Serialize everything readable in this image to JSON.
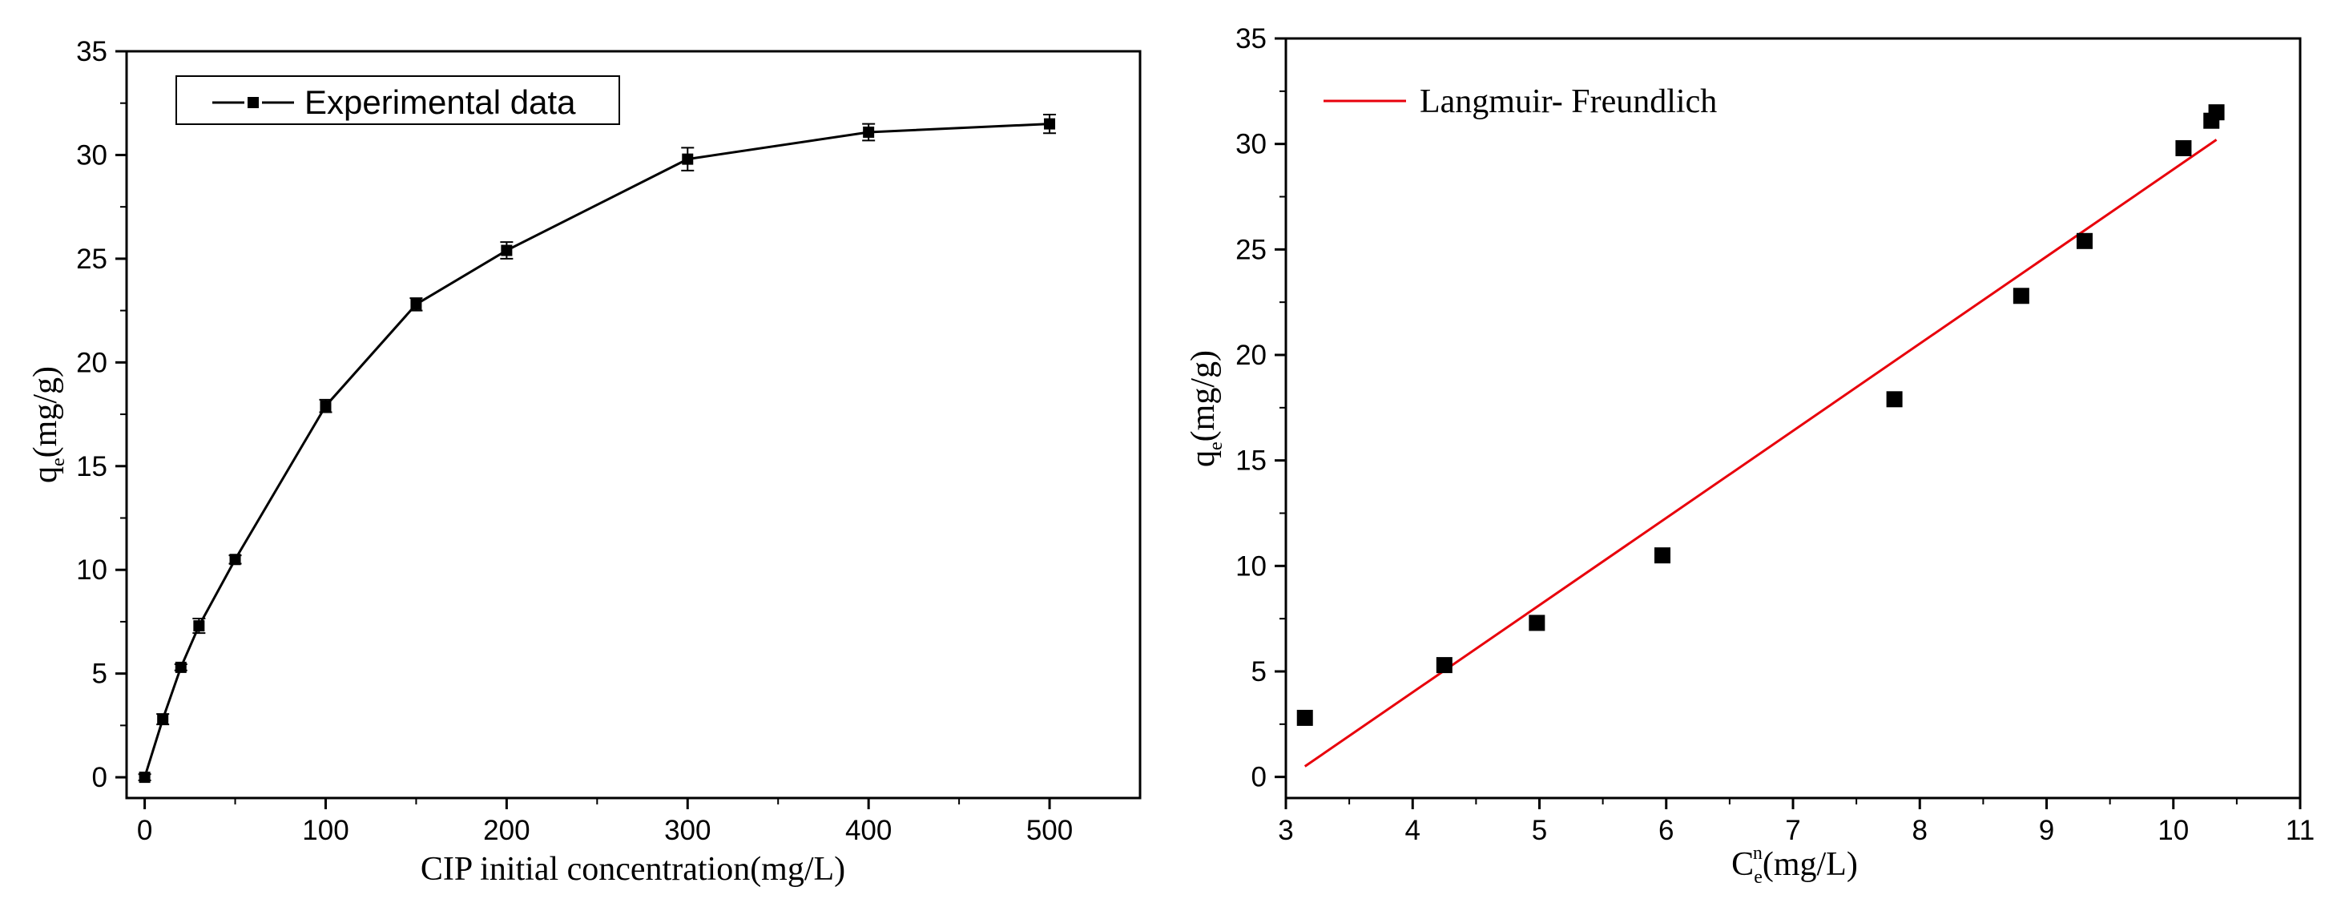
{
  "chart_data": [
    {
      "type": "line",
      "title": "",
      "xlabel": "CIP initial  concentration(mg/L)",
      "ylabel": {
        "base": "q",
        "sub": "e",
        "rest": "(mg/g)"
      },
      "xlim": [
        -10,
        550
      ],
      "ylim": [
        -1,
        35
      ],
      "xticks": [
        0,
        100,
        200,
        300,
        400,
        500
      ],
      "yticks": [
        0,
        5,
        10,
        15,
        20,
        25,
        30,
        35
      ],
      "legend": {
        "label": "Experimental data",
        "position": "top-left"
      },
      "series": [
        {
          "name": "Experimental data",
          "x": [
            0,
            10,
            20,
            30,
            50,
            100,
            150,
            200,
            300,
            400,
            500
          ],
          "y": [
            0,
            2.8,
            5.3,
            7.3,
            10.5,
            17.9,
            22.8,
            25.4,
            29.8,
            31.1,
            31.5
          ],
          "error": [
            0.15,
            0.25,
            0.15,
            0.35,
            0.2,
            0.3,
            0.3,
            0.4,
            0.55,
            0.4,
            0.45
          ]
        }
      ],
      "grid": false
    },
    {
      "type": "scatter",
      "title": "",
      "xlabel": {
        "base": "C",
        "sub": "e",
        "sup": "n",
        "rest": "(mg/L)"
      },
      "ylabel": {
        "base": "q",
        "sub": "e",
        "rest": "(mg/g)"
      },
      "xlim": [
        3,
        11
      ],
      "ylim": [
        -1,
        35
      ],
      "xticks": [
        3,
        4,
        5,
        6,
        7,
        8,
        9,
        10,
        11
      ],
      "yticks": [
        0,
        5,
        10,
        15,
        20,
        25,
        30,
        35
      ],
      "legend": {
        "label": "Langmuir- Freundlich",
        "position": "top-left"
      },
      "points": {
        "x": [
          3.15,
          4.25,
          4.98,
          5.97,
          7.8,
          8.8,
          9.3,
          10.08,
          10.3,
          10.34
        ],
        "y": [
          2.8,
          5.3,
          7.3,
          10.5,
          17.9,
          22.8,
          25.4,
          29.8,
          31.1,
          31.5
        ]
      },
      "fit": {
        "name": "Langmuir- Freundlich",
        "x": [
          3.15,
          10.34
        ],
        "y": [
          0.5,
          30.2
        ],
        "color": "#e8000b"
      },
      "grid": false
    }
  ]
}
